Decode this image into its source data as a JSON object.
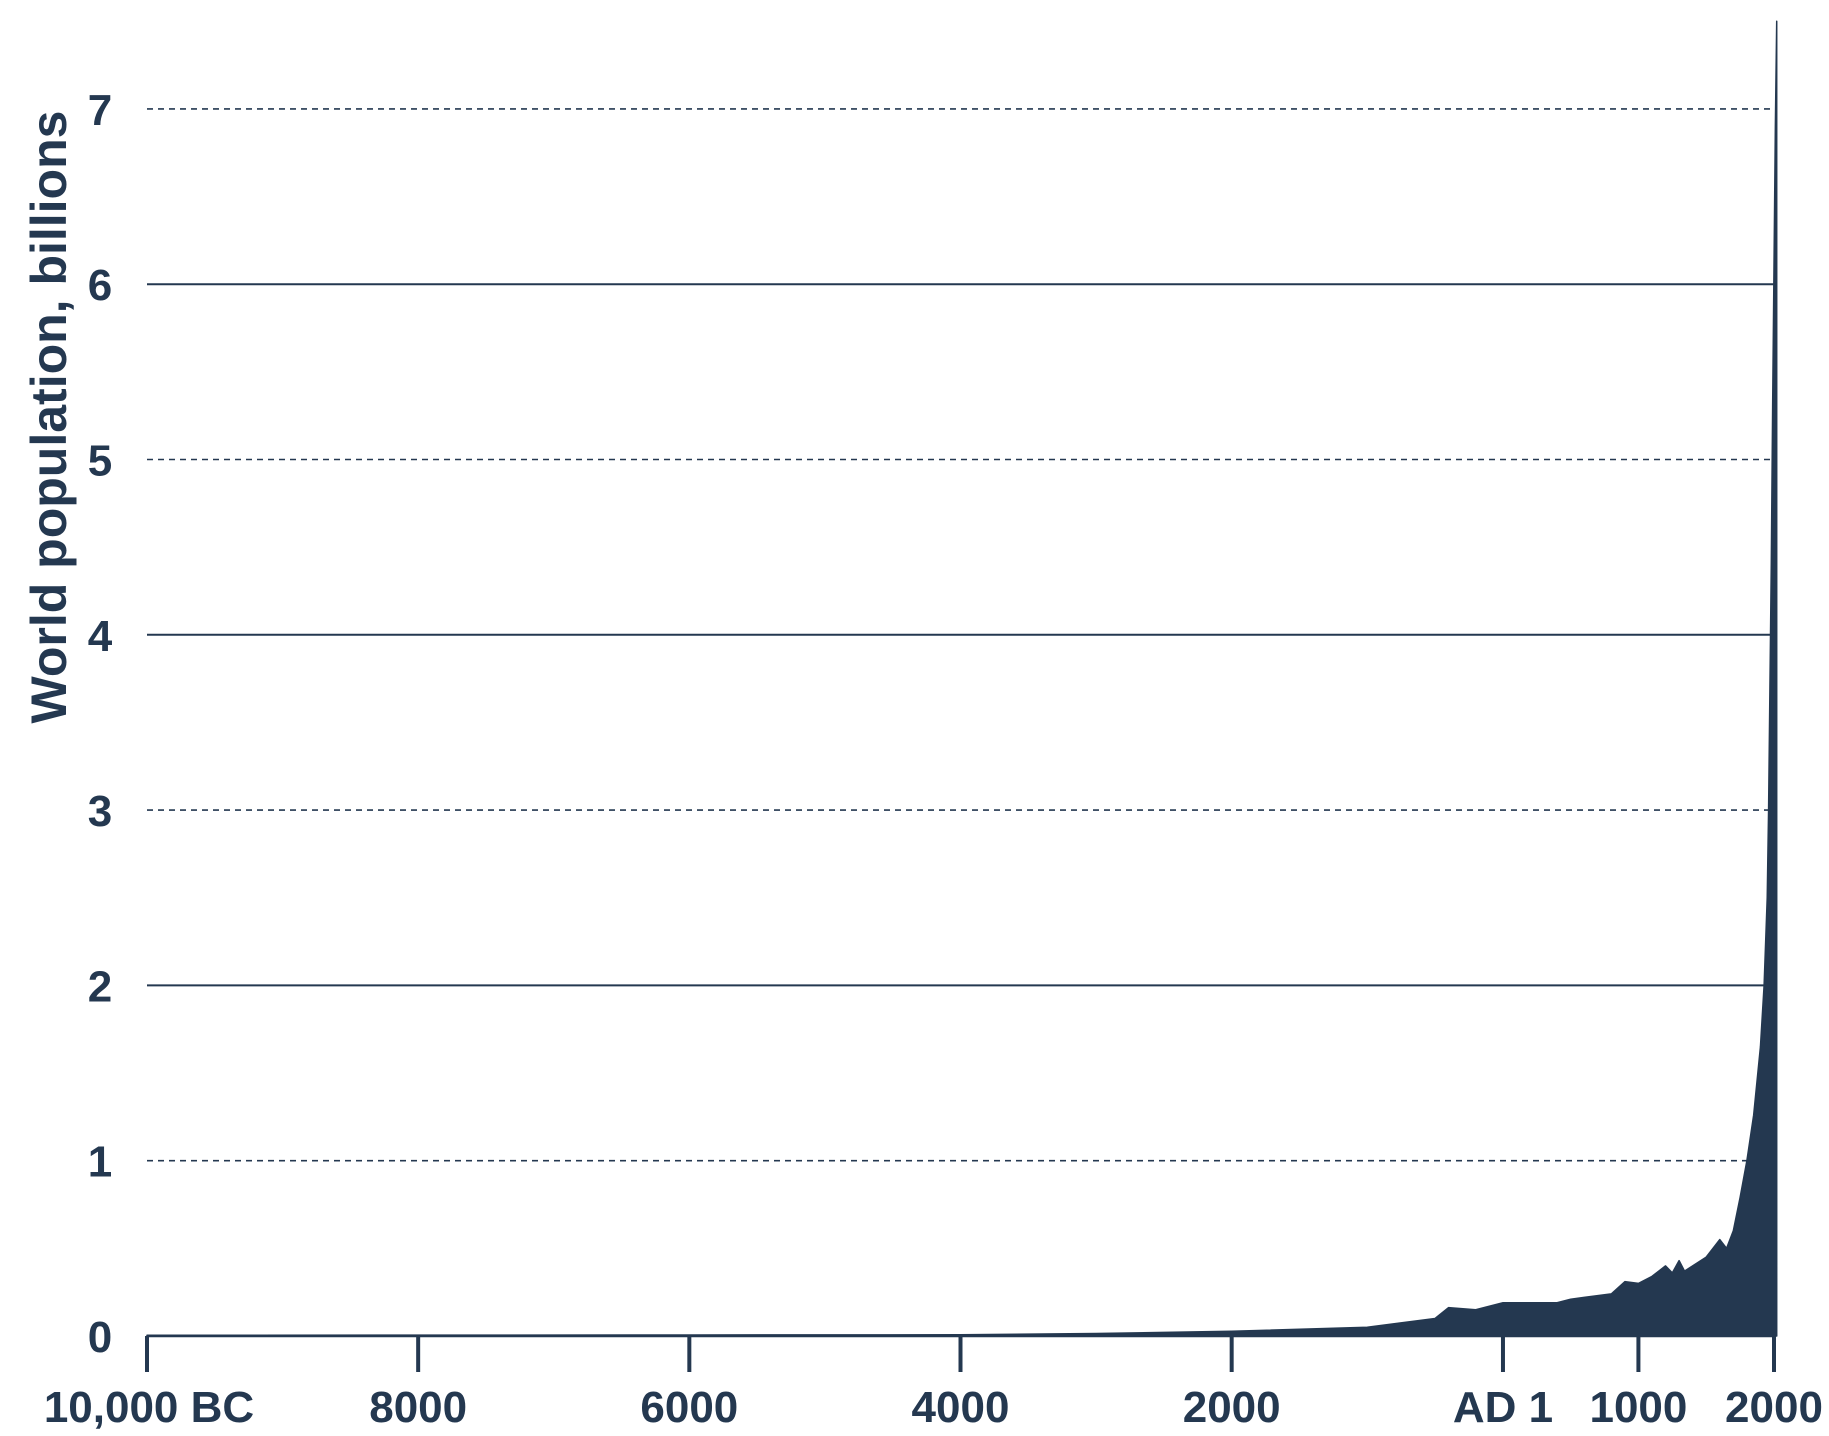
{
  "chart_data": {
    "type": "area",
    "title": "",
    "xlabel": "",
    "ylabel": "World population, billions",
    "xlim": [
      -10000,
      2020
    ],
    "ylim": [
      0,
      7.5
    ],
    "grid": true,
    "x_axis": {
      "ticks": [
        {
          "value": -10000,
          "label": "10,000 BC"
        },
        {
          "value": -8000,
          "label": "8000"
        },
        {
          "value": -6000,
          "label": "6000"
        },
        {
          "value": -4000,
          "label": "4000"
        },
        {
          "value": -2000,
          "label": "2000"
        },
        {
          "value": 1,
          "label": "AD 1"
        },
        {
          "value": 1000,
          "label": "1000"
        },
        {
          "value": 2000,
          "label": "2000"
        }
      ]
    },
    "y_axis": {
      "ticks": [
        {
          "value": 0,
          "label": "0",
          "grid": "none"
        },
        {
          "value": 1,
          "label": "1",
          "grid": "dashed"
        },
        {
          "value": 2,
          "label": "2",
          "grid": "solid"
        },
        {
          "value": 3,
          "label": "3",
          "grid": "dashed"
        },
        {
          "value": 4,
          "label": "4",
          "grid": "solid"
        },
        {
          "value": 5,
          "label": "5",
          "grid": "dashed"
        },
        {
          "value": 6,
          "label": "6",
          "grid": "solid"
        },
        {
          "value": 7,
          "label": "7",
          "grid": "dashed"
        }
      ]
    },
    "series": [
      {
        "x": [
          -10000,
          -8000,
          -6000,
          -4000,
          -3000,
          -2000,
          -1000,
          -500,
          -400,
          -200,
          1,
          200,
          400,
          500,
          600,
          700,
          800,
          900,
          1000,
          1100,
          1200,
          1250,
          1300,
          1340,
          1400,
          1500,
          1600,
          1650,
          1700,
          1750,
          1800,
          1850,
          1900,
          1927,
          1950,
          1960,
          1970,
          1980,
          1990,
          2000,
          2010,
          2020
        ],
        "values": [
          0.004,
          0.005,
          0.006,
          0.007,
          0.014,
          0.027,
          0.05,
          0.1,
          0.162,
          0.15,
          0.19,
          0.19,
          0.19,
          0.21,
          0.22,
          0.23,
          0.24,
          0.31,
          0.3,
          0.34,
          0.4,
          0.36,
          0.43,
          0.37,
          0.4,
          0.45,
          0.55,
          0.5,
          0.6,
          0.79,
          1.0,
          1.26,
          1.65,
          2.0,
          2.5,
          3.0,
          3.7,
          4.4,
          5.3,
          6.1,
          6.9,
          7.5
        ]
      }
    ],
    "colors": {
      "fill": "#243850",
      "text": "#243850",
      "grid": "#243850",
      "axis": "#243850"
    }
  }
}
